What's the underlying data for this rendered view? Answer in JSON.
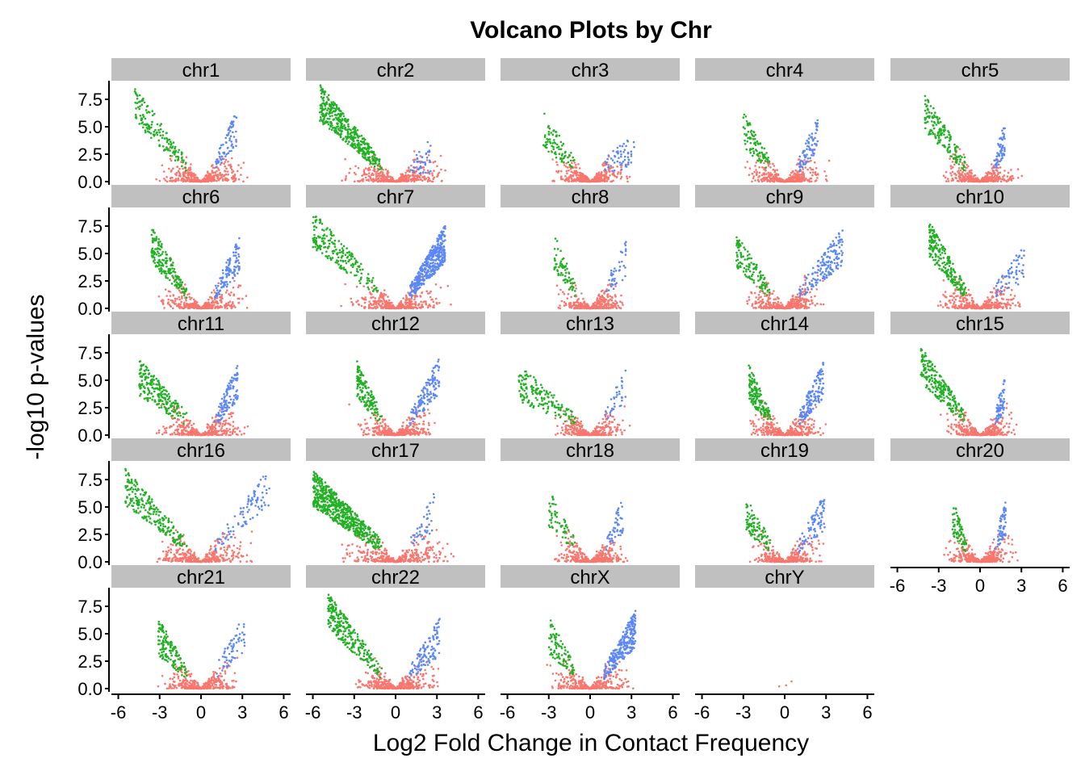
{
  "chart_data": {
    "type": "scatter",
    "title": "Volcano Plots by Chr",
    "xlabel": "Log2 Fold Change in Contact Frequency",
    "ylabel": "-log10 p-values",
    "x_ticks": [
      "-6",
      "-3",
      "0",
      "3",
      "6"
    ],
    "y_ticks": [
      "0.0",
      "2.5",
      "5.0",
      "7.5"
    ],
    "xlim": [
      -6.5,
      6.5
    ],
    "ylim": [
      -0.3,
      9.2
    ],
    "grid": false,
    "legend": "none",
    "series_colors": {
      "not_significant": "#f8766d",
      "down": "#22b024",
      "up": "#5b87f7"
    },
    "strip_color": "#c0c0c0",
    "panels": [
      {
        "name": "chr1",
        "left": {
          "xmin": -4.8,
          "ymax": 8.7,
          "n": 150
        },
        "right": {
          "xmax": 2.6,
          "ymax": 6.7,
          "n": 70
        },
        "spread": 2.6
      },
      {
        "name": "chr2",
        "left": {
          "xmin": -5.5,
          "ymax": 8.9,
          "n": 420
        },
        "right": {
          "xmax": 2.6,
          "ymax": 4.0,
          "n": 40
        },
        "spread": 3.0
      },
      {
        "name": "chr3",
        "left": {
          "xmin": -3.4,
          "ymax": 6.4,
          "n": 80
        },
        "right": {
          "xmax": 3.2,
          "ymax": 4.6,
          "n": 60
        },
        "spread": 2.2
      },
      {
        "name": "chr4",
        "left": {
          "xmin": -3.0,
          "ymax": 6.5,
          "n": 90
        },
        "right": {
          "xmax": 2.4,
          "ymax": 6.2,
          "n": 80
        },
        "spread": 2.3
      },
      {
        "name": "chr5",
        "left": {
          "xmin": -4.0,
          "ymax": 8.0,
          "n": 160
        },
        "right": {
          "xmax": 1.8,
          "ymax": 5.8,
          "n": 60
        },
        "spread": 2.2
      },
      {
        "name": "chr6",
        "left": {
          "xmin": -3.6,
          "ymax": 7.5,
          "n": 180
        },
        "right": {
          "xmax": 2.8,
          "ymax": 6.6,
          "n": 110
        },
        "spread": 2.6
      },
      {
        "name": "chr7",
        "left": {
          "xmin": -6.0,
          "ymax": 8.9,
          "n": 200
        },
        "right": {
          "xmax": 3.6,
          "ymax": 7.6,
          "n": 380
        },
        "spread": 2.8
      },
      {
        "name": "chr8",
        "left": {
          "xmin": -2.6,
          "ymax": 6.8,
          "n": 70
        },
        "right": {
          "xmax": 2.6,
          "ymax": 6.3,
          "n": 40
        },
        "spread": 2.0
      },
      {
        "name": "chr9",
        "left": {
          "xmin": -3.5,
          "ymax": 7.0,
          "n": 120
        },
        "right": {
          "xmax": 4.2,
          "ymax": 7.3,
          "n": 160
        },
        "spread": 2.4
      },
      {
        "name": "chr10",
        "left": {
          "xmin": -3.7,
          "ymax": 8.0,
          "n": 220
        },
        "right": {
          "xmax": 3.2,
          "ymax": 5.8,
          "n": 60
        },
        "spread": 2.5
      },
      {
        "name": "chr11",
        "left": {
          "xmin": -4.5,
          "ymax": 7.0,
          "n": 210
        },
        "right": {
          "xmax": 2.7,
          "ymax": 6.6,
          "n": 110
        },
        "spread": 2.6
      },
      {
        "name": "chr12",
        "left": {
          "xmin": -2.8,
          "ymax": 6.8,
          "n": 140
        },
        "right": {
          "xmax": 3.2,
          "ymax": 7.2,
          "n": 130
        },
        "spread": 2.3
      },
      {
        "name": "chr13",
        "left": {
          "xmin": -5.2,
          "ymax": 6.5,
          "n": 160
        },
        "right": {
          "xmax": 2.6,
          "ymax": 6.5,
          "n": 35
        },
        "spread": 2.1
      },
      {
        "name": "chr14",
        "left": {
          "xmin": -2.6,
          "ymax": 6.5,
          "n": 150
        },
        "right": {
          "xmax": 2.8,
          "ymax": 6.7,
          "n": 140
        },
        "spread": 2.2
      },
      {
        "name": "chr15",
        "left": {
          "xmin": -4.3,
          "ymax": 8.2,
          "n": 220
        },
        "right": {
          "xmax": 1.8,
          "ymax": 5.2,
          "n": 60
        },
        "spread": 2.1
      },
      {
        "name": "chr16",
        "left": {
          "xmin": -5.5,
          "ymax": 8.6,
          "n": 220
        },
        "right": {
          "xmax": 5.0,
          "ymax": 8.6,
          "n": 90
        },
        "spread": 2.8
      },
      {
        "name": "chr17",
        "left": {
          "xmin": -6.0,
          "ymax": 8.4,
          "n": 620
        },
        "right": {
          "xmax": 2.8,
          "ymax": 6.3,
          "n": 40
        },
        "spread": 3.3
      },
      {
        "name": "chr18",
        "left": {
          "xmin": -3.0,
          "ymax": 6.6,
          "n": 60
        },
        "right": {
          "xmax": 2.4,
          "ymax": 6.0,
          "n": 50
        },
        "spread": 2.2
      },
      {
        "name": "chr19",
        "left": {
          "xmin": -2.8,
          "ymax": 6.0,
          "n": 90
        },
        "right": {
          "xmax": 2.9,
          "ymax": 6.2,
          "n": 80
        },
        "spread": 2.2
      },
      {
        "name": "chr20",
        "left": {
          "xmin": -2.0,
          "ymax": 5.9,
          "n": 70
        },
        "right": {
          "xmax": 1.9,
          "ymax": 5.8,
          "n": 60
        },
        "spread": 2.1
      },
      {
        "name": "chr21",
        "left": {
          "xmin": -3.1,
          "ymax": 6.4,
          "n": 140
        },
        "right": {
          "xmax": 3.2,
          "ymax": 6.9,
          "n": 60
        },
        "spread": 2.2
      },
      {
        "name": "chr22",
        "left": {
          "xmin": -4.9,
          "ymax": 8.8,
          "n": 260
        },
        "right": {
          "xmax": 3.2,
          "ymax": 6.4,
          "n": 110
        },
        "spread": 2.6
      },
      {
        "name": "chrX",
        "left": {
          "xmin": -3.0,
          "ymax": 6.6,
          "n": 90
        },
        "right": {
          "xmax": 3.3,
          "ymax": 7.2,
          "n": 260
        },
        "spread": 2.4
      },
      {
        "name": "chrY",
        "left": null,
        "right": null,
        "spread": 0,
        "points": [
          [
            -0.4,
            0.2
          ],
          [
            0.1,
            0.3
          ],
          [
            0.5,
            0.65
          ]
        ]
      }
    ]
  }
}
